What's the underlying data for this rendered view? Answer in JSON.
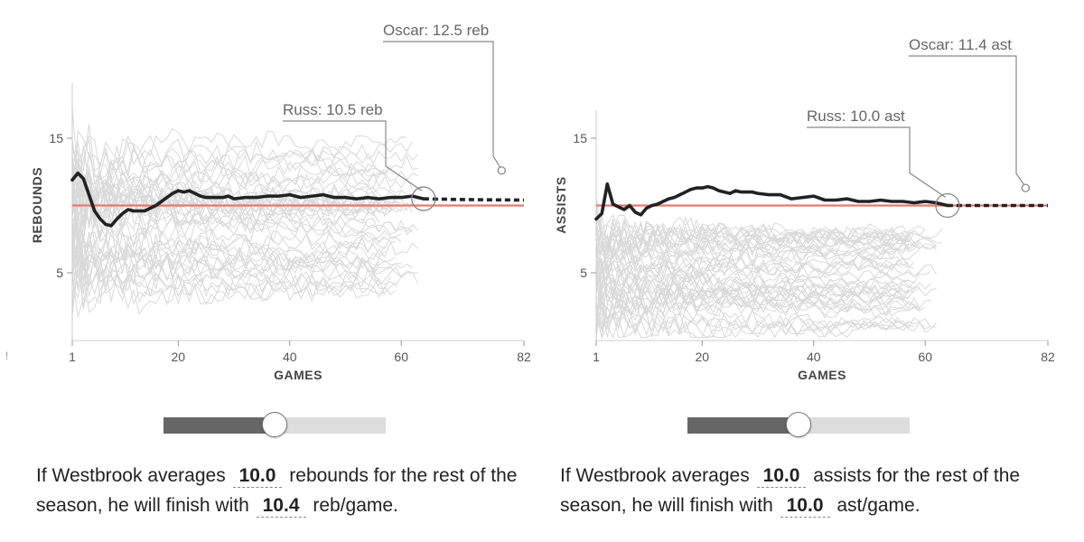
{
  "chart_data": [
    {
      "type": "line",
      "ylabel": "REBOUNDS",
      "xlabel": "GAMES",
      "xlim": [
        1,
        82
      ],
      "ylim": [
        0,
        19
      ],
      "x_ticks": [
        "1",
        "20",
        "40",
        "60",
        "82"
      ],
      "y_ticks": [
        "15",
        "5"
      ],
      "reference_line": 10,
      "series": [
        {
          "role": "highlight",
          "x": [
            1,
            2,
            3,
            4,
            5,
            6,
            7,
            8,
            9,
            10,
            11,
            12,
            13,
            14,
            15,
            16,
            17,
            18,
            19,
            20,
            21,
            22,
            23,
            24,
            25,
            26,
            27,
            28,
            29,
            30,
            32,
            34,
            36,
            38,
            40,
            42,
            44,
            46,
            48,
            50,
            52,
            54,
            56,
            58,
            60,
            62,
            64
          ],
          "values": [
            11.9,
            12.4,
            12.0,
            10.8,
            9.6,
            9.0,
            8.6,
            8.5,
            9.0,
            9.4,
            9.7,
            9.6,
            9.6,
            9.6,
            9.8,
            10.0,
            10.3,
            10.6,
            10.9,
            11.1,
            11.0,
            11.1,
            10.9,
            10.7,
            10.6,
            10.6,
            10.6,
            10.6,
            10.7,
            10.5,
            10.6,
            10.6,
            10.7,
            10.7,
            10.8,
            10.6,
            10.7,
            10.8,
            10.6,
            10.6,
            10.5,
            10.6,
            10.5,
            10.6,
            10.6,
            10.7,
            10.5
          ]
        },
        {
          "role": "projection",
          "x": [
            64,
            70,
            76,
            82
          ],
          "values": [
            10.5,
            10.45,
            10.42,
            10.4
          ]
        }
      ],
      "annotations": [
        {
          "label": "Russ: 10.5 reb",
          "x": 64,
          "y": 10.5
        },
        {
          "label": "Oscar: 12.5 reb",
          "x": 78,
          "y": 12.6
        }
      ]
    },
    {
      "type": "line",
      "ylabel": "ASSISTS",
      "xlabel": "GAMES",
      "xlim": [
        1,
        82
      ],
      "ylim": [
        0,
        17
      ],
      "x_ticks": [
        "1",
        "20",
        "40",
        "60",
        "82"
      ],
      "y_ticks": [
        "15",
        "5"
      ],
      "reference_line": 10,
      "series": [
        {
          "role": "highlight",
          "x": [
            1,
            2,
            3,
            4,
            5,
            6,
            7,
            8,
            9,
            10,
            11,
            12,
            13,
            14,
            15,
            16,
            17,
            18,
            19,
            20,
            21,
            22,
            23,
            24,
            25,
            26,
            27,
            28,
            29,
            30,
            32,
            34,
            36,
            38,
            40,
            42,
            44,
            46,
            48,
            50,
            52,
            54,
            56,
            58,
            60,
            62,
            64
          ],
          "values": [
            9.0,
            9.4,
            11.6,
            10.1,
            9.9,
            9.7,
            10.0,
            9.5,
            9.3,
            9.8,
            10.0,
            10.1,
            10.3,
            10.5,
            10.6,
            10.8,
            11.0,
            11.2,
            11.3,
            11.3,
            11.4,
            11.3,
            11.1,
            11.0,
            10.9,
            11.1,
            11.0,
            11.0,
            11.0,
            10.9,
            10.8,
            10.8,
            10.5,
            10.6,
            10.7,
            10.4,
            10.4,
            10.5,
            10.3,
            10.3,
            10.4,
            10.3,
            10.3,
            10.2,
            10.3,
            10.2,
            10.0
          ]
        },
        {
          "role": "projection",
          "x": [
            64,
            70,
            76,
            82
          ],
          "values": [
            10.0,
            10.0,
            10.0,
            10.0
          ]
        }
      ],
      "annotations": [
        {
          "label": "Russ: 10.0 ast",
          "x": 64,
          "y": 10.0
        },
        {
          "label": "Oscar: 11.4 ast",
          "x": 78,
          "y": 11.3
        }
      ]
    }
  ],
  "colors": {
    "highlight": "#222222",
    "reference": "#e07b72",
    "background_lines": "#d9d9d9",
    "annotation": "#888888"
  },
  "left_edge_glyph": "!",
  "sliders": [
    {
      "fraction": 0.5
    },
    {
      "fraction": 0.5
    }
  ],
  "sentences": [
    {
      "part1": "If Westbrook averages",
      "input_value": "10.0",
      "part2": "rebounds for the rest of the season, he will finish with",
      "result_value": "10.4",
      "part3": "reb/game."
    },
    {
      "part1": "If Westbrook averages",
      "input_value": "10.0",
      "part2": "assists for the rest of the season, he will finish with",
      "result_value": "10.0",
      "part3": "ast/game."
    }
  ]
}
